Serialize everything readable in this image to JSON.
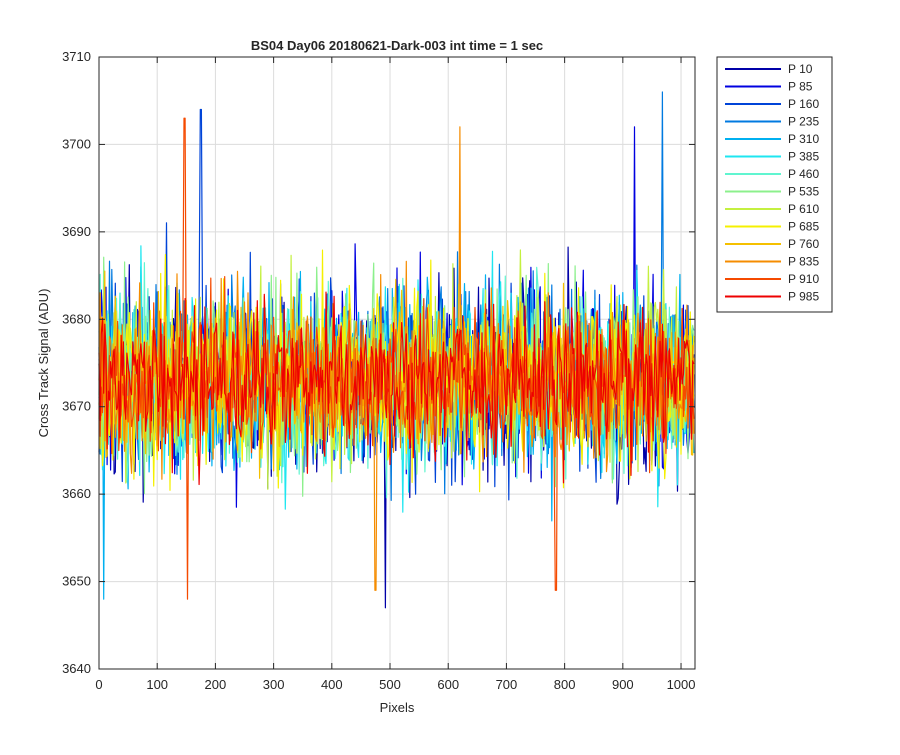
{
  "chart_data": {
    "type": "line",
    "title": "BS04 Day06 20180621-Dark-003 int time = 1 sec",
    "xlabel": "Pixels",
    "ylabel": "Cross Track Signal (ADU)",
    "xlim": [
      0,
      1024
    ],
    "ylim": [
      3640,
      3710
    ],
    "xticks": [
      0,
      100,
      200,
      300,
      400,
      500,
      600,
      700,
      800,
      900,
      1000
    ],
    "yticks": [
      3640,
      3650,
      3660,
      3670,
      3680,
      3690,
      3700,
      3710
    ],
    "grid": true,
    "legend_position": "outside-top-right",
    "noise": {
      "mean": 3673,
      "typical_min": 3655,
      "typical_max": 3692,
      "pixel_count": 1024
    },
    "series": [
      {
        "name": "P 10",
        "color": "#0000A8"
      },
      {
        "name": "P 85",
        "color": "#0000E0"
      },
      {
        "name": "P 160",
        "color": "#0044D8"
      },
      {
        "name": "P 235",
        "color": "#007AE0"
      },
      {
        "name": "P 310",
        "color": "#00B0F0"
      },
      {
        "name": "P 385",
        "color": "#1EE6F0"
      },
      {
        "name": "P 460",
        "color": "#60F5D0"
      },
      {
        "name": "P 535",
        "color": "#8CF08C"
      },
      {
        "name": "P 610",
        "color": "#C4F040"
      },
      {
        "name": "P 685",
        "color": "#F5F000"
      },
      {
        "name": "P 760",
        "color": "#F5C000"
      },
      {
        "name": "P 835",
        "color": "#F58C00"
      },
      {
        "name": "P 910",
        "color": "#F54A00"
      },
      {
        "name": "P 985",
        "color": "#EE0000"
      }
    ],
    "extremes": [
      {
        "series": "P 160",
        "x": 175,
        "y": 3704
      },
      {
        "series": "P 910",
        "x": 147,
        "y": 3703
      },
      {
        "series": "P 835",
        "x": 620,
        "y": 3702
      },
      {
        "series": "P 235",
        "x": 968,
        "y": 3706
      },
      {
        "series": "P 85",
        "x": 920,
        "y": 3702
      },
      {
        "series": "P 10",
        "x": 492,
        "y": 3647
      },
      {
        "series": "P 310",
        "x": 8,
        "y": 3648
      },
      {
        "series": "P 910",
        "x": 152,
        "y": 3648
      },
      {
        "series": "P 835",
        "x": 475,
        "y": 3649
      },
      {
        "series": "P 910",
        "x": 785,
        "y": 3649
      }
    ]
  }
}
